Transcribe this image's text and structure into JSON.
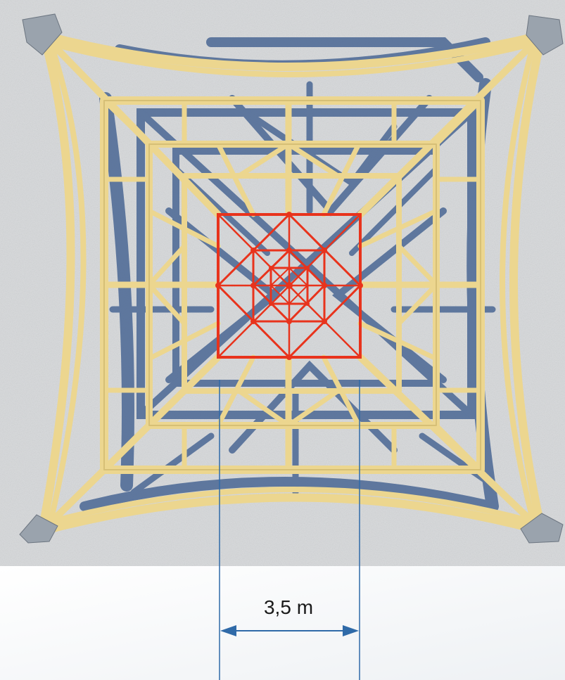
{
  "dimension": {
    "label": "3,5 m"
  },
  "colors": {
    "structure": "#ecd68f",
    "structure_edge": "#c9b066",
    "shadow": "#4a6794",
    "highlight": "#e8331c",
    "ground": "#d8dadc",
    "dimension_line": "#2f6aa8"
  },
  "icons": {
    "corner_base": "concrete-footing-icon"
  }
}
